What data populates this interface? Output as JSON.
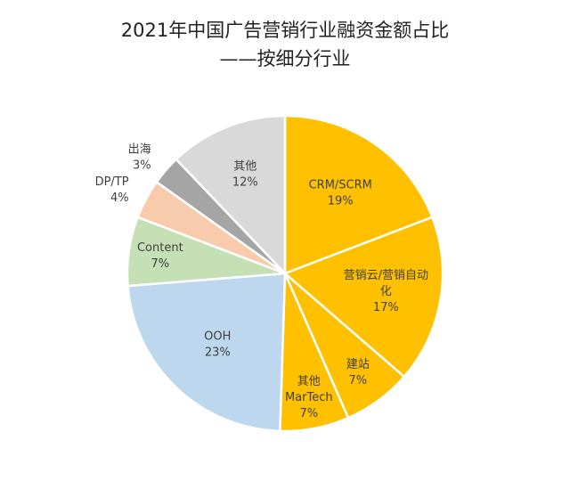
{
  "chart_data": {
    "type": "pie",
    "title": "2021年中国广告营销行业融资金额占比",
    "subtitle": "——按细分行业",
    "slices": [
      {
        "label": "CRM/SCRM",
        "value": 19,
        "pct_label": "19%",
        "color": "#FFC000"
      },
      {
        "label": "营销云/营销自动化",
        "value": 17,
        "pct_label": "17%",
        "color": "#FFC000"
      },
      {
        "label": "建站",
        "value": 7,
        "pct_label": "7%",
        "color": "#FFC000"
      },
      {
        "label": "其他MarTech",
        "value": 7,
        "pct_label": "7%",
        "color": "#FFC000"
      },
      {
        "label": "OOH",
        "value": 23,
        "pct_label": "23%",
        "color": "#BDD7EE"
      },
      {
        "label": "Content",
        "value": 7,
        "pct_label": "7%",
        "color": "#C5E0B4"
      },
      {
        "label": "DP/TP",
        "value": 4,
        "pct_label": "4%",
        "color": "#F8CBAD"
      },
      {
        "label": "出海",
        "value": 3,
        "pct_label": "3%",
        "color": "#A5A5A5"
      },
      {
        "label": "其他",
        "value": 12,
        "pct_label": "12%",
        "color": "#D9D9D9"
      }
    ]
  }
}
